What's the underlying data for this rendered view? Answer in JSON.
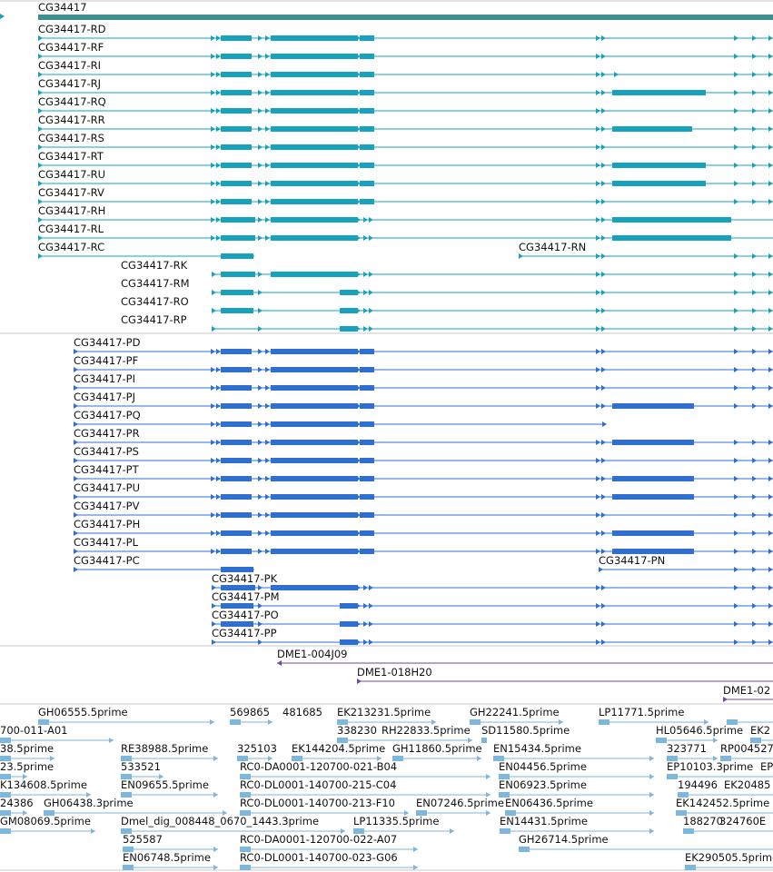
{
  "colors": {
    "gene": "#3f8f8f",
    "rna": "#17a2be",
    "protein": "#2e6fd0",
    "clone": "#6a4aa3",
    "est": "#7fb6dc",
    "divider": "#c8c8c8"
  },
  "gene": {
    "label": "CG34417"
  },
  "transcripts": {
    "rd": "CG34417-RD",
    "rf": "CG34417-RF",
    "ri": "CG34417-RI",
    "rj": "CG34417-RJ",
    "rq": "CG34417-RQ",
    "rr": "CG34417-RR",
    "rs": "CG34417-RS",
    "rt": "CG34417-RT",
    "ru": "CG34417-RU",
    "rv": "CG34417-RV",
    "rh": "CG34417-RH",
    "rl": "CG34417-RL",
    "rc": "CG34417-RC",
    "rn": "CG34417-RN",
    "rk": "CG34417-RK",
    "rm": "CG34417-RM",
    "ro": "CG34417-RO",
    "rp": "CG34417-RP"
  },
  "proteins": {
    "pd": "CG34417-PD",
    "pf": "CG34417-PF",
    "pi": "CG34417-PI",
    "pj": "CG34417-PJ",
    "pq": "CG34417-PQ",
    "pr": "CG34417-PR",
    "ps": "CG34417-PS",
    "pt": "CG34417-PT",
    "pu": "CG34417-PU",
    "pv": "CG34417-PV",
    "ph": "CG34417-PH",
    "pl": "CG34417-PL",
    "pc": "CG34417-PC",
    "pn": "CG34417-PN",
    "pk": "CG34417-PK",
    "pm": "CG34417-PM",
    "po": "CG34417-PO",
    "pp": "CG34417-PP"
  },
  "clones": {
    "c1": "DME1-004J09",
    "c2": "DME1-018H20",
    "c3": "DME1-02"
  },
  "ests": {
    "e01": "GH06555.5prime",
    "e02": "569865",
    "e03": "481685",
    "e04": "EK213231.5prime",
    "e05": "GH22241.5prime",
    "e06": "LP11771.5prime",
    "e07": "700-011-A01",
    "e08": "338230",
    "e09": "RH22833.5prime",
    "e10": "SD11580.5prime",
    "e11": "HL05646.5prime",
    "e12": "EK2",
    "e13": "38.5prime",
    "e14": "RE38988.5prime",
    "e15": "325103",
    "e16": "EK144204.5prime",
    "e17": "GH11860.5prime",
    "e18": "EN15434.5prime",
    "e19": "323771",
    "e20": "RP004527",
    "e21": "23.5prime",
    "e22": "533521",
    "e23": "RC0-DA0001-120700-021-B04",
    "e24": "EN04456.5prime",
    "e25": "EP10103.3prime",
    "e26": "EP",
    "e27": "K134608.5prime",
    "e28": "EN09655.5prime",
    "e29": "RC0-DL0001-140700-215-C04",
    "e30": "EN06923.5prime",
    "e31": "194496",
    "e32": "EK20485",
    "e33": "24386",
    "e34": "GH06438.3prime",
    "e35": "RC0-DL0001-140700-213-F10",
    "e36": "EN07246.5prime",
    "e37": "EN06436.5prime",
    "e38": "EK142452.5prime",
    "e39": "GM08069.5prime",
    "e40": "Dmel_dig_008448_0670_1443.3prime",
    "e41": "LP11335.5prime",
    "e42": "EN14431.5prime",
    "e43": "188270",
    "e44": "324760E",
    "e45": "525587",
    "e46": "RC0-DA0001-120700-022-A07",
    "e47": "GH26714.5prime",
    "e48": "EN06748.5prime",
    "e49": "RC0-DL0001-140700-023-G06",
    "e50": "EK290505.5prime"
  }
}
